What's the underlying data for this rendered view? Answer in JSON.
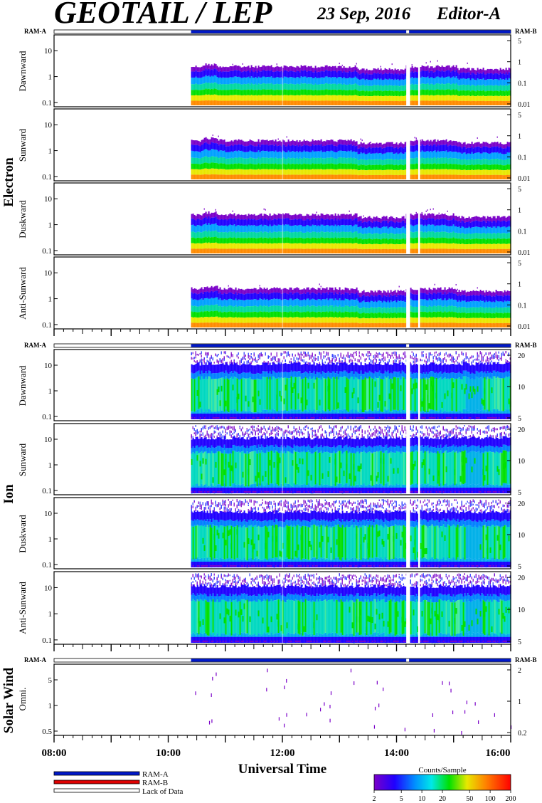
{
  "header": {
    "title": "GEOTAIL / LEP",
    "date": "23 Sep, 2016",
    "editor": "Editor-A"
  },
  "groups": {
    "electron": "Electron",
    "ion": "Ion",
    "solar_wind": "Solar Wind"
  },
  "status_labels": {
    "ram_a": "RAM-A",
    "ram_b": "RAM-B"
  },
  "x_axis": {
    "label": "Universal Time",
    "ticks": [
      "08:00",
      "10:00",
      "12:00",
      "14:00",
      "16:00"
    ],
    "range_hours": [
      8,
      16
    ]
  },
  "legend": {
    "items": [
      "RAM-A",
      "RAM-B",
      "Lack of Data"
    ],
    "colors": {
      "ram_a": "#0018c8",
      "ram_b": "#e00000",
      "lack": "#ffffff"
    }
  },
  "colorbar": {
    "title": "Counts/Sample",
    "ticks": [
      "2",
      "5",
      "10",
      "20",
      "50",
      "100",
      "200"
    ],
    "values": [
      2,
      5,
      10,
      20,
      50,
      100,
      200
    ]
  },
  "chart_data": {
    "type": "heatmap",
    "data_start_hour": 10.4,
    "gaps_hours": [
      [
        14.17,
        14.22
      ],
      [
        14.38,
        14.4
      ]
    ],
    "status_bar": [
      {
        "from": 8.0,
        "to": 10.4,
        "state": "lack"
      },
      {
        "from": 10.4,
        "to": 14.17,
        "state": "ram_a"
      },
      {
        "from": 14.17,
        "to": 14.22,
        "state": "lack"
      },
      {
        "from": 14.22,
        "to": 16.0,
        "state": "ram_a"
      }
    ],
    "panels": [
      {
        "group": "electron",
        "label": "Dawnward",
        "left_ticks": [
          "10",
          "1",
          "0.1"
        ],
        "right_ticks": [
          "5",
          "1",
          "0.1",
          "0.01"
        ],
        "kind": "electron"
      },
      {
        "group": "electron",
        "label": "Sunward",
        "left_ticks": [
          "10",
          "1",
          "0.1"
        ],
        "right_ticks": [
          "5",
          "1",
          "0.1",
          "0.01"
        ],
        "kind": "electron"
      },
      {
        "group": "electron",
        "label": "Duskward",
        "left_ticks": [
          "10",
          "1",
          "0.1"
        ],
        "right_ticks": [
          "5",
          "1",
          "0.1",
          "0.01"
        ],
        "kind": "electron"
      },
      {
        "group": "electron",
        "label": "Anti-Sunward",
        "left_ticks": [
          "10",
          "1",
          "0.1"
        ],
        "right_ticks": [
          "5",
          "1",
          "0.1",
          "0.01"
        ],
        "kind": "electron"
      },
      {
        "group": "ion",
        "label": "Dawnward",
        "left_ticks": [
          "10",
          "1",
          "0.1"
        ],
        "right_ticks": [
          "20",
          "10",
          "5"
        ],
        "kind": "ion"
      },
      {
        "group": "ion",
        "label": "Sunward",
        "left_ticks": [
          "10",
          "1",
          "0.1"
        ],
        "right_ticks": [
          "20",
          "10",
          "5"
        ],
        "kind": "ion"
      },
      {
        "group": "ion",
        "label": "Duskward",
        "left_ticks": [
          "10",
          "1",
          "0.1"
        ],
        "right_ticks": [
          "20",
          "10",
          "5"
        ],
        "kind": "ion"
      },
      {
        "group": "ion",
        "label": "Anti-Sunward",
        "left_ticks": [
          "10",
          "1",
          "0.1"
        ],
        "right_ticks": [
          "20",
          "10",
          "5"
        ],
        "kind": "ion"
      },
      {
        "group": "solar_wind",
        "label": "Omni.",
        "left_ticks": [
          "5",
          "1",
          "0.5"
        ],
        "right_ticks": [
          "2",
          "1",
          "0.2"
        ],
        "kind": "sw"
      }
    ]
  }
}
